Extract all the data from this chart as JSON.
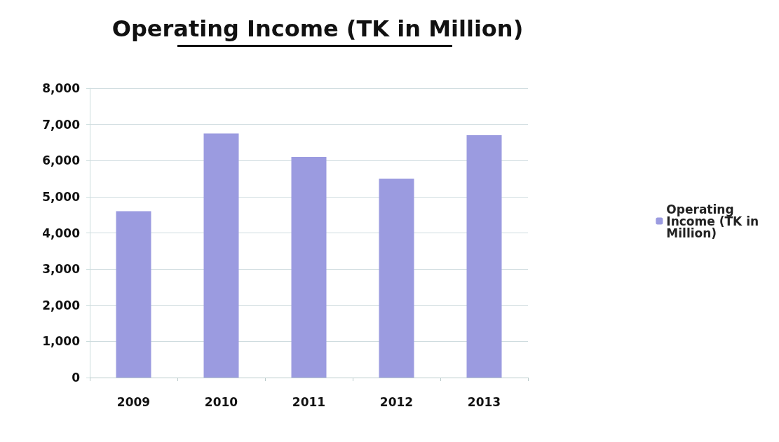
{
  "chart_data": {
    "type": "bar",
    "title": "Operating Income (TK in Million)",
    "categories": [
      "2009",
      "2010",
      "2011",
      "2012",
      "2013"
    ],
    "series": [
      {
        "name": "Operating Income (TK in Million)",
        "color": "#9b9be0",
        "values": [
          4600,
          6750,
          6100,
          5500,
          6700
        ]
      }
    ],
    "ylim": [
      0,
      8000
    ],
    "yticks": [
      {
        "value": 0,
        "label": "0"
      },
      {
        "value": 1000,
        "label": "1,000"
      },
      {
        "value": 2000,
        "label": "2,000"
      },
      {
        "value": 3000,
        "label": "3,000"
      },
      {
        "value": 4000,
        "label": "4,000"
      },
      {
        "value": 5000,
        "label": "5,000"
      },
      {
        "value": 6000,
        "label": "6,000"
      },
      {
        "value": 7000,
        "label": "7,000"
      },
      {
        "value": 8000,
        "label": "8,000"
      }
    ],
    "grid": "y",
    "legend": "right"
  }
}
